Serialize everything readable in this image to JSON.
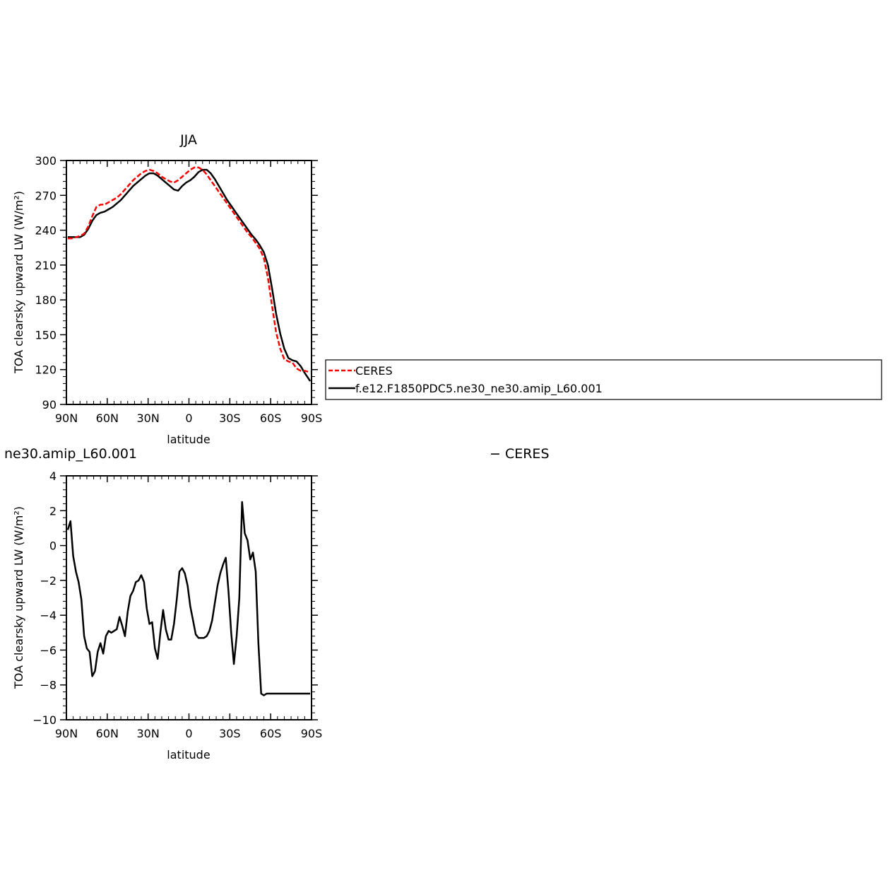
{
  "chart_data": [
    {
      "type": "line",
      "title": "JJA",
      "xlabel": "latitude",
      "ylabel": "TOA clearsky upward LW (W/m²)",
      "xlim": [
        90,
        -90
      ],
      "ylim": [
        90,
        300
      ],
      "xticks": [
        {
          "v": 90,
          "label": "90N"
        },
        {
          "v": 60,
          "label": "60N"
        },
        {
          "v": 30,
          "label": "30N"
        },
        {
          "v": 0,
          "label": "0"
        },
        {
          "v": -30,
          "label": "30S"
        },
        {
          "v": -60,
          "label": "60S"
        },
        {
          "v": -90,
          "label": "90S"
        }
      ],
      "yticks": [
        90,
        120,
        150,
        180,
        210,
        240,
        270,
        300
      ],
      "grid": false,
      "legend_position": "right",
      "series": [
        {
          "name": "CERES",
          "color": "#ff0000",
          "dash": "dashed",
          "x": [
            89,
            86,
            83,
            80,
            77,
            74,
            71,
            68,
            65,
            62,
            59,
            56,
            53,
            50,
            47,
            44,
            41,
            38,
            35,
            32,
            29,
            26,
            23,
            20,
            17,
            14,
            11,
            8,
            5,
            2,
            -1,
            -4,
            -7,
            -10,
            -13,
            -16,
            -19,
            -22,
            -25,
            -28,
            -31,
            -34,
            -37,
            -40,
            -43,
            -46,
            -49,
            -52,
            -55,
            -58,
            -61,
            -64,
            -67,
            -70,
            -73,
            -76,
            -79,
            -82,
            -85,
            -88,
            -89
          ],
          "y": [
            233,
            233,
            234,
            235,
            237,
            243,
            252,
            260,
            262,
            262,
            264,
            266,
            268,
            271,
            275,
            279,
            283,
            286,
            289,
            291,
            292,
            291,
            289,
            286,
            284,
            282,
            281,
            283,
            286,
            289,
            292,
            294,
            294,
            292,
            288,
            283,
            278,
            273,
            268,
            263,
            258,
            253,
            248,
            243,
            238,
            234,
            229,
            224,
            216,
            199,
            175,
            152,
            138,
            129,
            127,
            126,
            121,
            119,
            119,
            118,
            118
          ]
        },
        {
          "name": "f.e12.F1850PDC5.ne30_ne30.amip_L60.001",
          "color": "#000000",
          "dash": "solid",
          "x": [
            89,
            86,
            83,
            80,
            77,
            74,
            71,
            68,
            65,
            62,
            59,
            56,
            53,
            50,
            47,
            44,
            41,
            38,
            35,
            32,
            29,
            26,
            23,
            20,
            17,
            14,
            11,
            8,
            5,
            2,
            -1,
            -4,
            -7,
            -10,
            -13,
            -16,
            -19,
            -22,
            -25,
            -28,
            -31,
            -34,
            -37,
            -40,
            -43,
            -46,
            -49,
            -52,
            -55,
            -58,
            -61,
            -64,
            -67,
            -70,
            -73,
            -76,
            -79,
            -82,
            -85,
            -88,
            -89
          ],
          "y": [
            234,
            234,
            234,
            234,
            236,
            241,
            248,
            253,
            255,
            256,
            258,
            260,
            263,
            266,
            270,
            274,
            278,
            281,
            284,
            287,
            289,
            289,
            287,
            284,
            281,
            278,
            275,
            274,
            278,
            281,
            283,
            286,
            290,
            292,
            292,
            289,
            284,
            278,
            272,
            266,
            261,
            256,
            251,
            246,
            241,
            236,
            232,
            227,
            221,
            210,
            190,
            168,
            151,
            138,
            130,
            128,
            127,
            123,
            117,
            112,
            110
          ]
        }
      ]
    },
    {
      "type": "line",
      "title": "ne30.amip_L60.001",
      "xlabel": "latitude",
      "ylabel": "TOA clearsky upward LW (W/m²)",
      "xlim": [
        90,
        -90
      ],
      "ylim": [
        -10,
        4
      ],
      "xticks": [
        {
          "v": 90,
          "label": "90N"
        },
        {
          "v": 60,
          "label": "60N"
        },
        {
          "v": 30,
          "label": "30N"
        },
        {
          "v": 0,
          "label": "0"
        },
        {
          "v": -30,
          "label": "30S"
        },
        {
          "v": -60,
          "label": "60S"
        },
        {
          "v": -90,
          "label": "90S"
        }
      ],
      "yticks": [
        -10,
        -8,
        -6,
        -4,
        -2,
        0,
        2,
        4
      ],
      "grid": false,
      "legend_text": "− CERES",
      "series": [
        {
          "name": "",
          "color": "#000000",
          "dash": "solid",
          "x": [
            89,
            87,
            85,
            83,
            81,
            79,
            77,
            75,
            73,
            71,
            69,
            67,
            65,
            63,
            61,
            59,
            57,
            55,
            53,
            51,
            49,
            47,
            45,
            43,
            41,
            39,
            37,
            35,
            33,
            31,
            29,
            27,
            25,
            23,
            21,
            19,
            17,
            15,
            13,
            11,
            9,
            7,
            5,
            3,
            1,
            -1,
            -3,
            -5,
            -7,
            -9,
            -11,
            -13,
            -15,
            -17,
            -19,
            -21,
            -23,
            -25,
            -27,
            -29,
            -31,
            -33,
            -35,
            -37,
            -39,
            -41,
            -43,
            -45,
            -47,
            -49,
            -51,
            -53,
            -55,
            -57,
            -59,
            -61,
            -63,
            -65,
            -67,
            -69,
            -71,
            -73,
            -75,
            -77,
            -79,
            -81,
            -83,
            -85,
            -87,
            -89
          ],
          "y": [
            0.9,
            1.4,
            -0.6,
            -1.5,
            -2.1,
            -3.1,
            -5.2,
            -5.9,
            -6.1,
            -7.5,
            -7.2,
            -6.1,
            -5.6,
            -6.2,
            -5.2,
            -4.9,
            -5.0,
            -4.9,
            -4.8,
            -4.1,
            -4.6,
            -5.2,
            -3.8,
            -2.9,
            -2.6,
            -2.1,
            -2.0,
            -1.7,
            -2.1,
            -3.6,
            -4.5,
            -4.4,
            -5.9,
            -6.5,
            -5.0,
            -3.7,
            -4.8,
            -5.4,
            -5.4,
            -4.5,
            -3.1,
            -1.5,
            -1.3,
            -1.6,
            -2.3,
            -3.5,
            -4.3,
            -5.1,
            -5.3,
            -5.3,
            -5.3,
            -5.2,
            -4.9,
            -4.3,
            -3.3,
            -2.3,
            -1.6,
            -1.1,
            -0.7,
            -2.6,
            -5.0,
            -6.8,
            -5.2,
            -3.0,
            2.5,
            0.7,
            0.3,
            -0.8,
            -0.4,
            -1.5,
            -5.6,
            -8.5,
            -8.6,
            -8.5,
            -8.5,
            -8.5,
            -8.5,
            -8.5,
            -8.5,
            -8.5,
            -8.5,
            -8.5,
            -8.5,
            -8.5,
            -8.5,
            -8.5,
            -8.5,
            -8.5,
            -8.5,
            -8.5
          ]
        }
      ]
    }
  ]
}
